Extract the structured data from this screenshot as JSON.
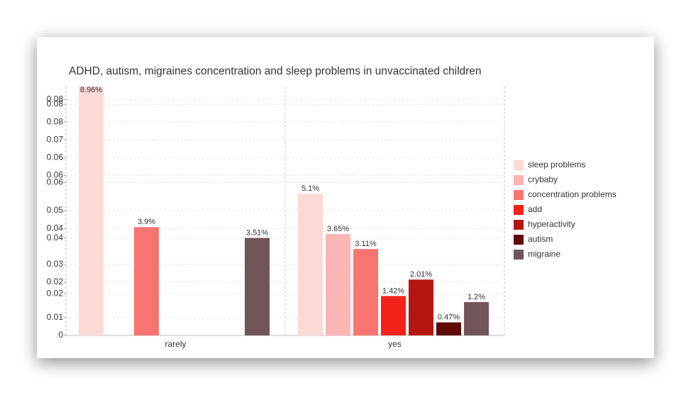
{
  "chart_data": {
    "type": "bar",
    "title": "ADHD, autism, migraines concentration and sleep problems in unvaccinated children",
    "categories": [
      "rarely",
      "yes"
    ],
    "series": [
      {
        "name": "sleep problems",
        "color": "#fdd9d6",
        "values": [
          0.0896,
          0.051
        ],
        "value_labels": [
          "8.96%",
          "5.1%"
        ]
      },
      {
        "name": "crybaby",
        "color": "#fbb5b2",
        "values": [
          null,
          0.0365
        ],
        "value_labels": [
          null,
          "3.65%"
        ]
      },
      {
        "name": "concentration problems",
        "color": "#f87470",
        "values": [
          0.039,
          0.0311
        ],
        "value_labels": [
          "3.9%",
          "3.11%"
        ]
      },
      {
        "name": "add",
        "color": "#f5211b",
        "values": [
          null,
          0.0142
        ],
        "value_labels": [
          null,
          "1.42%"
        ]
      },
      {
        "name": "hyperactivity",
        "color": "#b51612",
        "values": [
          null,
          0.0201
        ],
        "value_labels": [
          null,
          "2.01%"
        ]
      },
      {
        "name": "autism",
        "color": "#5e0a08",
        "values": [
          null,
          0.0047
        ],
        "value_labels": [
          null,
          "0.47%"
        ]
      },
      {
        "name": "migraine",
        "color": "#725559",
        "values": [
          0.0351,
          0.012
        ],
        "value_labels": [
          "3.51%",
          "1.2%"
        ]
      }
    ],
    "ylim": [
      0,
      0.0896
    ],
    "yticks": [
      0,
      {
        "value": 0.0064,
        "label": "0.01"
      },
      {
        "value": 0.015,
        "label": "0.02"
      },
      {
        "value": 0.0192,
        "label": "0.02"
      },
      {
        "value": 0.0256,
        "label": "0.03"
      },
      {
        "value": 0.035,
        "label": "0.04"
      },
      {
        "value": 0.0384,
        "label": "0.04"
      },
      {
        "value": 0.045,
        "label": "0.05"
      },
      {
        "value": 0.055,
        "label": "0.06"
      },
      {
        "value": 0.0576,
        "label": "0.06"
      },
      {
        "value": 0.064,
        "label": "0.06"
      },
      {
        "value": 0.0704,
        "label": "0.07"
      },
      {
        "value": 0.0768,
        "label": "0.08"
      },
      {
        "value": 0.0832,
        "label": "0.08"
      },
      {
        "value": 0.0849,
        "label": "0.08"
      }
    ],
    "grid": true,
    "legend": "right"
  }
}
